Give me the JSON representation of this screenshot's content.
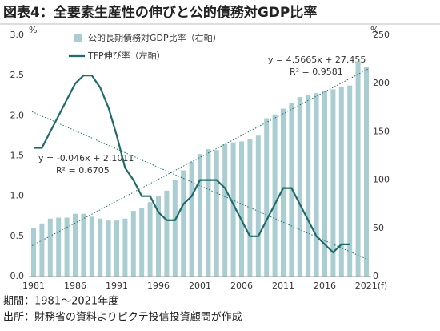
{
  "chart_data": {
    "type": "bar-line",
    "title": "図表4：全要素生産性の伸びと公的債務対GDP比率",
    "categories": [
      "1981",
      null,
      null,
      null,
      null,
      "1986",
      null,
      null,
      null,
      null,
      "1991",
      null,
      null,
      null,
      null,
      "1996",
      null,
      null,
      null,
      null,
      "2001",
      null,
      null,
      null,
      null,
      "2006",
      null,
      null,
      null,
      null,
      "2011",
      null,
      null,
      null,
      null,
      "2016",
      null,
      null,
      null,
      null,
      "2021(f)"
    ],
    "series": [
      {
        "name": "公的長期債務対GDP比率（右軸）",
        "type": "bar",
        "axis": "y2",
        "color": "#a9cdd0",
        "values": [
          50,
          55,
          60,
          61,
          61,
          65,
          65,
          62,
          60,
          58,
          58,
          60,
          68,
          71,
          77,
          83,
          89,
          100,
          110,
          119,
          127,
          132,
          131,
          137,
          139,
          140,
          142,
          146,
          164,
          168,
          174,
          180,
          186,
          188,
          190,
          192,
          194,
          196,
          198,
          223,
          217
        ]
      },
      {
        "name": "TFP伸び率（左軸）",
        "type": "line",
        "axis": "y",
        "color": "#1f6b6b",
        "values": [
          1.6,
          1.6,
          1.8,
          2.0,
          2.2,
          2.4,
          2.5,
          2.5,
          2.35,
          2.1,
          1.75,
          1.35,
          1.2,
          1.0,
          1.0,
          0.8,
          0.7,
          0.7,
          0.9,
          1.0,
          1.2,
          1.2,
          1.2,
          1.1,
          0.9,
          0.7,
          0.5,
          0.5,
          0.7,
          0.9,
          1.1,
          1.1,
          0.9,
          0.7,
          0.5,
          0.4,
          0.3,
          0.4,
          0.4,
          null,
          null
        ]
      }
    ],
    "trendlines": [
      {
        "axis": "y",
        "color": "#1f6b6b",
        "values": [
          2.05,
          0.21
        ]
      },
      {
        "axis": "y2",
        "color": "#1f6b6b",
        "values": [
          32,
          215
        ]
      }
    ],
    "ylim": [
      0,
      3
    ],
    "yticks": [
      {
        "value": 0,
        "label": "0.0"
      },
      0.5,
      {
        "value": 1,
        "label": "1.0"
      },
      1.5,
      {
        "value": 2,
        "label": "2.0"
      },
      2.5,
      {
        "value": 3,
        "label": "3.0"
      }
    ],
    "y2lim": [
      0,
      250
    ],
    "y2ticks": [
      0,
      50,
      100,
      150,
      200,
      250
    ],
    "y_unit": "%",
    "y2_unit": "%",
    "annotations": [
      "y = 4.5665x + 27.455",
      "R² = 0.9581",
      "y = -0.046x + 2.1011",
      "R² = 0.6705"
    ],
    "notes": [
      "期間：1981～2021年度",
      "出所：財務省の資料よりピクテ投信投資顧問が作成"
    ],
    "legend": "top-left",
    "grid": false
  }
}
